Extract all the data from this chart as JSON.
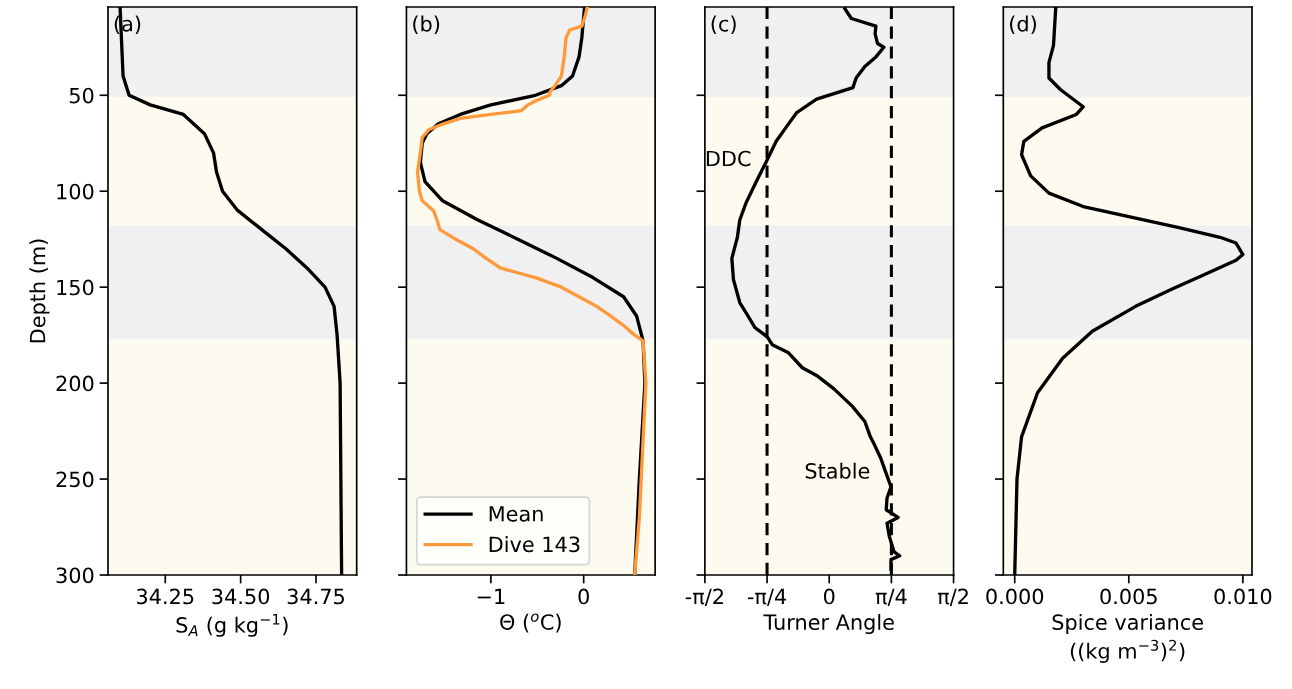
{
  "chart_data": [
    {
      "type": "line",
      "annotations": [
        "(a)"
      ],
      "xlabel": "S$_{A}$ (g kg$^{−1}$)",
      "ylabel": "Depth (m)",
      "xlim": [
        34.06,
        34.885
      ],
      "xticks": [
        34.25,
        {
          "value": 34.5,
          "label": "34.50"
        },
        34.75
      ],
      "ylim": [
        300,
        4
      ],
      "yticks": [
        50,
        100,
        150,
        200,
        250,
        300
      ],
      "grid": false,
      "legend": false,
      "bands": [
        {
          "axis": "y",
          "from": 4,
          "to": 51,
          "color": "#f0f0f0"
        },
        {
          "axis": "y",
          "from": 51,
          "to": 118,
          "color": "#fdfbef"
        },
        {
          "axis": "y",
          "from": 118,
          "to": 177,
          "color": "#f0f0f0"
        },
        {
          "axis": "y",
          "from": 177,
          "to": 300,
          "color": "#fdfbef"
        }
      ],
      "series": [
        {
          "color": "#000000",
          "x": [
            34.1,
            34.11,
            34.13,
            34.2,
            34.31,
            34.38,
            34.41,
            34.42,
            34.44,
            34.49,
            34.57,
            34.65,
            34.72,
            34.78,
            34.81,
            34.82,
            34.83,
            34.835
          ],
          "values": [
            4,
            40,
            50,
            55,
            60,
            70,
            80,
            90,
            100,
            110,
            120,
            130,
            140,
            150,
            160,
            175,
            200,
            300
          ]
        }
      ]
    },
    {
      "type": "line",
      "annotations": [
        "(b)"
      ],
      "xlabel": "Θ ($^{o}$C)",
      "xlim": [
        -1.91,
        0.77
      ],
      "xticks": [
        {
          "value": -1,
          "label": "−1"
        },
        0
      ],
      "ylim": [
        300,
        4
      ],
      "yticks": [
        50,
        100,
        150,
        200,
        250,
        300
      ],
      "tick_labels": "x",
      "grid": false,
      "legend": "bottom left",
      "bands": [
        {
          "axis": "y",
          "from": 4,
          "to": 51,
          "color": "#f0f0f0"
        },
        {
          "axis": "y",
          "from": 51,
          "to": 118,
          "color": "#fdfbef"
        },
        {
          "axis": "y",
          "from": 118,
          "to": 177,
          "color": "#f0f0f0"
        },
        {
          "axis": "y",
          "from": 177,
          "to": 300,
          "color": "#fdfbef"
        }
      ],
      "series": [
        {
          "name": "Mean",
          "color": "#000000",
          "x": [
            0.01,
            -0.02,
            -0.05,
            -0.12,
            -0.24,
            -0.52,
            -1.0,
            -1.33,
            -1.57,
            -1.69,
            -1.74,
            -1.76,
            -1.71,
            -1.52,
            -1.14,
            -0.71,
            -0.29,
            0.1,
            0.43,
            0.57,
            0.64,
            0.66,
            0.6,
            0.55
          ],
          "values": [
            4,
            20,
            30,
            40,
            45,
            50,
            55,
            60,
            65,
            70,
            75,
            85,
            95,
            105,
            115,
            125,
            135,
            145,
            155,
            165,
            178,
            200,
            250,
            300
          ]
        },
        {
          "name": "Dive 143",
          "color": "#ff9a3c",
          "x": [
            0.04,
            0.02,
            -0.02,
            -0.15,
            -0.19,
            -0.21,
            -0.24,
            -0.31,
            -0.36,
            -0.37,
            -0.52,
            -0.6,
            -0.67,
            -1.0,
            -1.33,
            -1.52,
            -1.67,
            -1.74,
            -1.76,
            -1.79,
            -1.77,
            -1.74,
            -1.62,
            -1.58,
            -1.55,
            -1.38,
            -1.19,
            -1.05,
            -0.9,
            -0.52,
            -0.24,
            -0.05,
            0.14,
            0.29,
            0.43,
            0.55,
            0.64,
            0.67,
            0.64,
            0.6,
            0.55
          ],
          "values": [
            4,
            8,
            14,
            16,
            20,
            30,
            40,
            45,
            48,
            50,
            53,
            55,
            58,
            60,
            62,
            65,
            68,
            72,
            80,
            90,
            100,
            105,
            110,
            115,
            120,
            125,
            130,
            135,
            140,
            145,
            150,
            155,
            160,
            165,
            170,
            175,
            178,
            200,
            230,
            270,
            300
          ]
        }
      ]
    },
    {
      "type": "line",
      "annotations": [
        "(c)",
        "DDC",
        "Stable"
      ],
      "xlabel": "Turner Angle",
      "xlim": [
        -1.5708,
        1.5708
      ],
      "xticks": [
        {
          "value": -1.5708,
          "label": "-π/2"
        },
        {
          "value": -0.7854,
          "label": "-π/4"
        },
        0,
        {
          "value": 0.7854,
          "label": "π/4"
        },
        {
          "value": 1.5708,
          "label": "π/2"
        }
      ],
      "ylim": [
        300,
        4
      ],
      "yticks": [
        50,
        100,
        150,
        200,
        250,
        300
      ],
      "tick_labels": "x",
      "grid": false,
      "legend": false,
      "bands": [
        {
          "axis": "y",
          "from": 4,
          "to": 51,
          "color": "#f0f0f0"
        },
        {
          "axis": "y",
          "from": 51,
          "to": 118,
          "color": "#fdfbef"
        },
        {
          "axis": "y",
          "from": 118,
          "to": 177,
          "color": "#f0f0f0"
        },
        {
          "axis": "y",
          "from": 177,
          "to": 300,
          "color": "#fdfbef"
        }
      ],
      "ref_lines": [
        {
          "axis": "x",
          "value": -0.7854,
          "color": "#000000",
          "line_style": "dashed"
        },
        {
          "axis": "x",
          "value": 0.7854,
          "color": "#000000",
          "line_style": "dashed"
        }
      ],
      "series": [
        {
          "color": "#000000",
          "x": [
            0.2,
            0.28,
            0.59,
            0.58,
            0.61,
            0.69,
            0.59,
            0.45,
            0.34,
            0.3,
            -0.16,
            -0.41,
            -0.55,
            -0.67,
            -0.8,
            -0.91,
            -1.05,
            -1.13,
            -1.16,
            -1.23,
            -1.21,
            -1.13,
            -1.04,
            -0.94,
            -0.78,
            -0.72,
            -0.52,
            -0.34,
            -0.16,
            0.06,
            0.29,
            0.45,
            0.52,
            0.57,
            0.65,
            0.71,
            0.78,
            0.73,
            0.72,
            0.87,
            0.73,
            0.76,
            0.82,
            0.89,
            0.78,
            0.78
          ],
          "values": [
            5,
            10,
            14,
            18,
            23,
            25,
            30,
            35,
            41,
            46,
            52,
            59,
            67,
            74,
            85,
            94,
            106,
            115,
            124,
            135,
            146,
            158,
            164,
            171,
            176,
            180,
            184,
            192,
            196,
            203,
            212,
            220,
            228,
            232,
            239,
            246,
            254,
            260,
            266,
            270,
            273,
            280,
            288,
            290,
            292,
            297
          ]
        }
      ]
    },
    {
      "type": "line",
      "annotations": [
        "(d)"
      ],
      "xlabel": "Spice variance\n((kg m$^{−3}$)$^{2}$)",
      "xlim": [
        -0.0005,
        0.0104
      ],
      "xticks": [
        {
          "value": 0,
          "label": "0.000"
        },
        {
          "value": 0.005,
          "label": "0.005"
        },
        {
          "value": 0.01,
          "label": "0.010"
        }
      ],
      "ylim": [
        300,
        4
      ],
      "yticks": [
        50,
        100,
        150,
        200,
        250,
        300
      ],
      "tick_labels": "x",
      "grid": false,
      "legend": false,
      "bands": [
        {
          "axis": "y",
          "from": 4,
          "to": 51,
          "color": "#f0f0f0"
        },
        {
          "axis": "y",
          "from": 51,
          "to": 118,
          "color": "#fdfbef"
        },
        {
          "axis": "y",
          "from": 118,
          "to": 177,
          "color": "#f0f0f0"
        },
        {
          "axis": "y",
          "from": 177,
          "to": 300,
          "color": "#fdfbef"
        }
      ],
      "series": [
        {
          "color": "#000000",
          "x": [
            0.0018,
            0.0017,
            0.0015,
            0.0015,
            0.002,
            0.003,
            0.0027,
            0.0012,
            0.0004,
            0.0003,
            0.0007,
            0.0015,
            0.003,
            0.0049,
            0.0072,
            0.009,
            0.0097,
            0.01,
            0.0097,
            0.0082,
            0.0069,
            0.0053,
            0.0034,
            0.0021,
            0.001,
            0.0003,
            0.0001,
            0.0
          ],
          "values": [
            4,
            24,
            33,
            41,
            47,
            56,
            60,
            67,
            74,
            81,
            92,
            101,
            108,
            113,
            119,
            124,
            127,
            133,
            136,
            144,
            151,
            160,
            173,
            187,
            205,
            228,
            250,
            300
          ]
        }
      ]
    }
  ]
}
